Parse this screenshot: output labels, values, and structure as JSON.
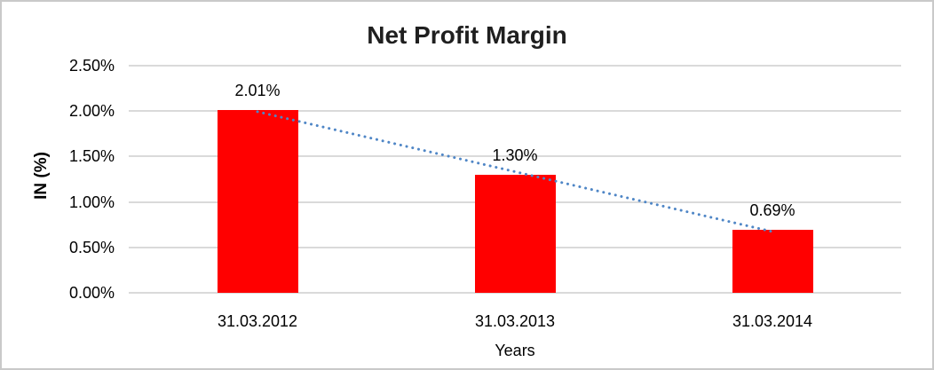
{
  "chart_data": {
    "type": "bar",
    "title": "Net Profit Margin",
    "xlabel": "Years",
    "ylabel": "IN (%)",
    "categories": [
      "31.03.2012",
      "31.03.2013",
      "31.03.2014"
    ],
    "values": [
      2.01,
      1.3,
      0.69
    ],
    "data_labels": [
      "2.01%",
      "1.30%",
      "0.69%"
    ],
    "y_ticks": [
      "2.50%",
      "2.00%",
      "1.50%",
      "1.00%",
      "0.50%",
      "0.00%"
    ],
    "ylim": [
      0,
      2.5
    ],
    "grid": true,
    "legend": "none",
    "bar_color": "#ff0000",
    "gridline_color": "#dadada",
    "trendline": {
      "type": "linear",
      "style": "dotted",
      "color": "#4f86c6"
    }
  }
}
